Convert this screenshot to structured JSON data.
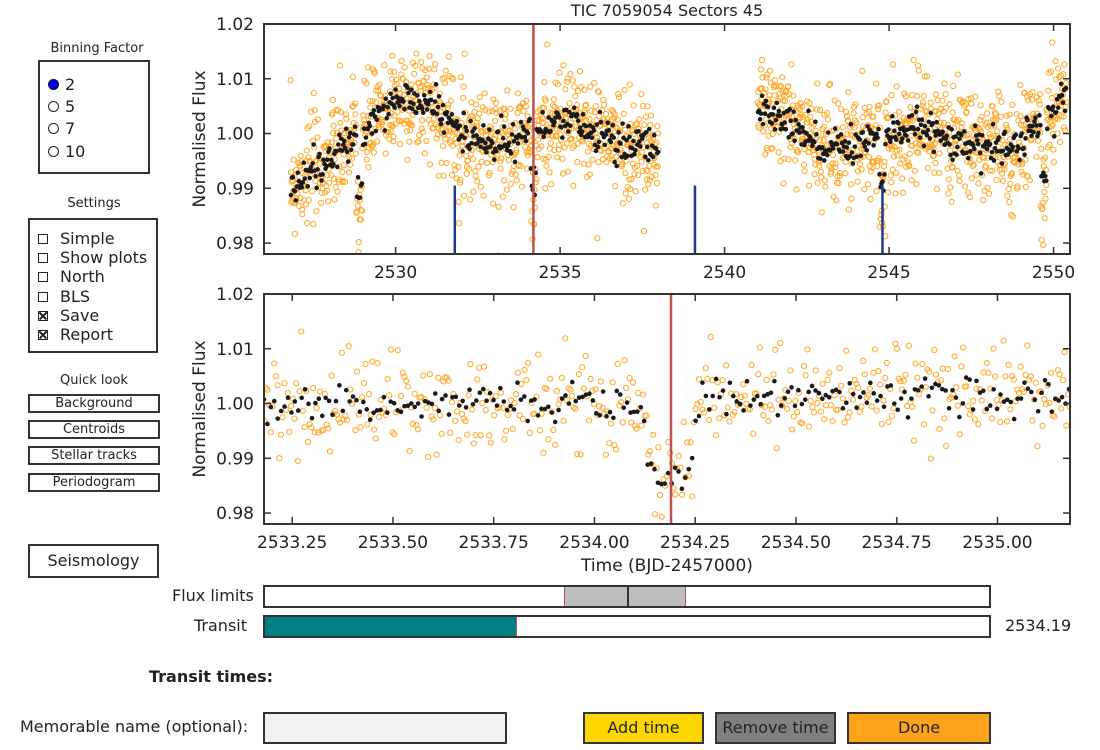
{
  "binning": {
    "title": "Binning Factor",
    "options": [
      "2",
      "5",
      "7",
      "10"
    ],
    "selected": "2"
  },
  "settings": {
    "title": "Settings",
    "items": [
      {
        "label": "Simple",
        "checked": false
      },
      {
        "label": "Show plots",
        "checked": false
      },
      {
        "label": "North",
        "checked": false
      },
      {
        "label": "BLS",
        "checked": false
      },
      {
        "label": "Save",
        "checked": true
      },
      {
        "label": "Report",
        "checked": true
      }
    ]
  },
  "quicklook": {
    "title": "Quick look",
    "buttons": [
      "Background",
      "Centroids",
      "Stellar tracks",
      "Periodogram"
    ]
  },
  "seismology_label": "Seismology",
  "plot_title": "TIC 7059054    Sectors 45",
  "chart_data": [
    {
      "type": "scatter",
      "ylabel": "Normalised Flux",
      "xlim": [
        2526,
        2550.5
      ],
      "ylim": [
        0.978,
        1.02
      ],
      "xticks": [
        2530,
        2535,
        2540,
        2545,
        2550
      ],
      "yticks": [
        0.98,
        0.99,
        1.0,
        1.01,
        1.02
      ],
      "segments": [
        [
          2526.7,
          2538.1
        ],
        [
          2540.9,
          2550.5
        ]
      ],
      "series": [
        {
          "name": "unbinned",
          "color": "#ffa726",
          "marker": "open-circle"
        },
        {
          "name": "binned",
          "color": "#1a1a1a",
          "marker": "filled-circle"
        }
      ],
      "binned_trend": [
        [
          2526.8,
          0.991
        ],
        [
          2528.0,
          0.995
        ],
        [
          2529.0,
          1.0
        ],
        [
          2530.0,
          1.006
        ],
        [
          2531.0,
          1.006
        ],
        [
          2532.0,
          1.0
        ],
        [
          2533.0,
          0.998
        ],
        [
          2534.5,
          1.001
        ],
        [
          2535.5,
          1.002
        ],
        [
          2537.0,
          0.998
        ],
        [
          2538.0,
          0.997
        ],
        [
          2541.0,
          1.005
        ],
        [
          2542.0,
          1.002
        ],
        [
          2543.0,
          0.998
        ],
        [
          2544.0,
          0.998
        ],
        [
          2545.0,
          1.0
        ],
        [
          2546.0,
          1.001
        ],
        [
          2547.0,
          0.999
        ],
        [
          2548.0,
          0.997
        ],
        [
          2549.0,
          0.998
        ],
        [
          2550.4,
          1.007
        ]
      ],
      "transit_dips": [
        2528.9,
        2534.2,
        2544.8,
        2549.7
      ],
      "data_gaps_marked": [
        2531.8,
        2539.1,
        2544.8
      ],
      "selected_transit": 2534.19
    },
    {
      "type": "scatter",
      "ylabel": "Normalised Flux",
      "xlabel": "Time (BJD-2457000)",
      "xlim": [
        2533.18,
        2535.18
      ],
      "ylim": [
        0.978,
        1.02
      ],
      "xticks": [
        2533.25,
        2533.5,
        2533.75,
        2534.0,
        2534.25,
        2534.5,
        2534.75,
        2535.0
      ],
      "xtick_labels": [
        "2533.25",
        "2533.50",
        "2533.75",
        "2534.00",
        "2534.25",
        "2534.50",
        "2534.75",
        "2535.00"
      ],
      "yticks": [
        0.98,
        0.99,
        1.0,
        1.01,
        1.02
      ],
      "baseline": 1.0,
      "transit_center": 2534.19,
      "transit_depth": 0.012,
      "selected_transit": 2534.19
    }
  ],
  "flux_limits": {
    "label": "Flux limits",
    "low": 0.413,
    "high": 0.579,
    "mid": 0.5
  },
  "transit": {
    "label": "Transit",
    "fraction": 0.347,
    "value": "2534.19"
  },
  "transit_times_label": "Transit times:",
  "memorable_name": {
    "label": "Memorable name (optional):",
    "value": ""
  },
  "buttons": {
    "add": "Add time",
    "remove": "Remove time",
    "done": "Done"
  },
  "colors": {
    "orange": "#ffa726",
    "teal": "#008080",
    "redline": "#c0504d",
    "navy": "#1f3a93",
    "add": "#ffd700",
    "remove": "#808080",
    "done": "#ffa31a"
  }
}
